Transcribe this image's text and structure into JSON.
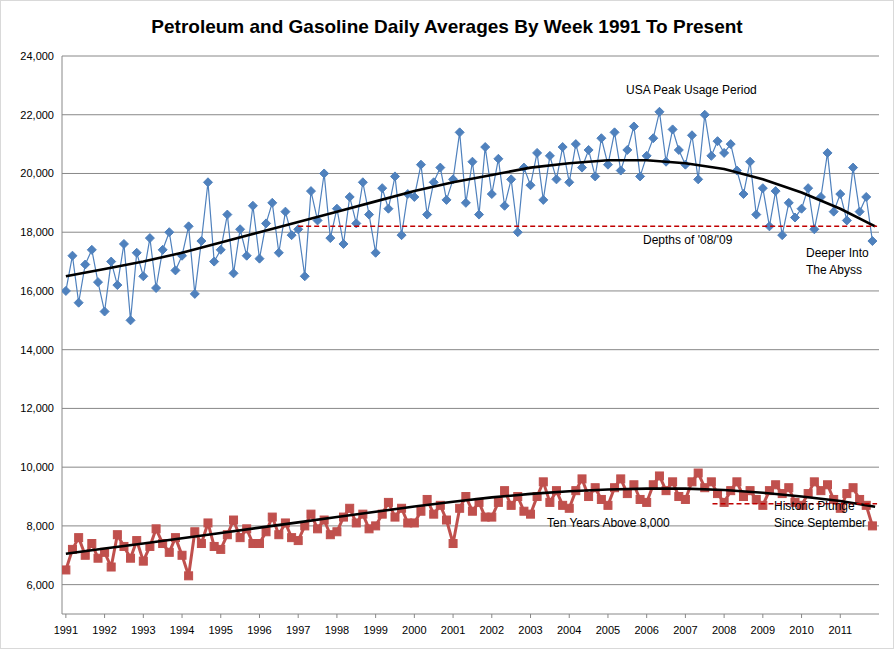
{
  "chart_data": {
    "type": "line",
    "title": "Petroleum and Gasoline Daily Averages By Week 1991 To Present",
    "xlim": [
      1990.9,
      2012
    ],
    "xticks": [
      1991,
      1992,
      1993,
      1994,
      1995,
      1996,
      1997,
      1998,
      1999,
      2000,
      2001,
      2002,
      2003,
      2004,
      2005,
      2006,
      2007,
      2008,
      2009,
      2010,
      2011
    ],
    "ylim": [
      5000,
      24000
    ],
    "yticks": [
      {
        "value": 6000,
        "label": "6,000"
      },
      {
        "value": 8000,
        "label": "8,000"
      },
      {
        "value": 10000,
        "label": "10,000"
      },
      {
        "value": 12000,
        "label": "12,000"
      },
      {
        "value": 14000,
        "label": "14,000"
      },
      {
        "value": 16000,
        "label": "16,000"
      },
      {
        "value": 18000,
        "label": "18,000"
      },
      {
        "value": 20000,
        "label": "20,000"
      },
      {
        "value": 22000,
        "label": "22,000"
      },
      {
        "value": 24000,
        "label": "24,000"
      }
    ],
    "grid": true,
    "series": [
      {
        "type": "line",
        "color": "#4f81bd",
        "marker": "diamond",
        "line_style": "solid",
        "x": [
          1991,
          1991.17,
          1991.33,
          1991.5,
          1991.67,
          1991.83,
          1992,
          1992.17,
          1992.33,
          1992.5,
          1992.67,
          1992.83,
          1993,
          1993.17,
          1993.33,
          1993.5,
          1993.67,
          1993.83,
          1994,
          1994.17,
          1994.33,
          1994.5,
          1994.67,
          1994.83,
          1995,
          1995.17,
          1995.33,
          1995.5,
          1995.67,
          1995.83,
          1996,
          1996.17,
          1996.33,
          1996.5,
          1996.67,
          1996.83,
          1997,
          1997.17,
          1997.33,
          1997.5,
          1997.67,
          1997.83,
          1998,
          1998.17,
          1998.33,
          1998.5,
          1998.67,
          1998.83,
          1999,
          1999.17,
          1999.33,
          1999.5,
          1999.67,
          1999.83,
          2000,
          2000.17,
          2000.33,
          2000.5,
          2000.67,
          2000.83,
          2001,
          2001.17,
          2001.33,
          2001.5,
          2001.67,
          2001.83,
          2002,
          2002.17,
          2002.33,
          2002.5,
          2002.67,
          2002.83,
          2003,
          2003.17,
          2003.33,
          2003.5,
          2003.67,
          2003.83,
          2004,
          2004.17,
          2004.33,
          2004.5,
          2004.67,
          2004.83,
          2005,
          2005.17,
          2005.33,
          2005.5,
          2005.67,
          2005.83,
          2006,
          2006.17,
          2006.33,
          2006.5,
          2006.67,
          2006.83,
          2007,
          2007.17,
          2007.33,
          2007.5,
          2007.67,
          2007.83,
          2008,
          2008.17,
          2008.33,
          2008.5,
          2008.67,
          2008.83,
          2009,
          2009.17,
          2009.33,
          2009.5,
          2009.67,
          2009.83,
          2010,
          2010.17,
          2010.33,
          2010.5,
          2010.67,
          2010.83,
          2011,
          2011.17,
          2011.33,
          2011.5,
          2011.67,
          2011.83
        ],
        "values": [
          16000,
          17200,
          15600,
          16900,
          17400,
          16300,
          15300,
          17000,
          16200,
          17600,
          15000,
          17300,
          16500,
          17800,
          16100,
          17400,
          18000,
          16700,
          17200,
          18200,
          15900,
          17700,
          19700,
          17000,
          17400,
          18600,
          16600,
          18100,
          17200,
          18900,
          17100,
          18300,
          19000,
          17300,
          18700,
          17900,
          18100,
          16500,
          19400,
          18400,
          20000,
          17800,
          18800,
          17600,
          19200,
          18300,
          19700,
          18600,
          17300,
          19500,
          18800,
          19900,
          17900,
          19300,
          19200,
          20300,
          18600,
          19700,
          20200,
          19100,
          19800,
          21400,
          19000,
          20400,
          18600,
          20900,
          19300,
          20500,
          18900,
          19800,
          18000,
          20200,
          19600,
          20700,
          19100,
          20600,
          19800,
          20900,
          19700,
          21000,
          20200,
          20800,
          19900,
          21200,
          20300,
          21400,
          20100,
          20800,
          21600,
          19900,
          20600,
          21200,
          22100,
          20400,
          21500,
          20800,
          20300,
          21300,
          19800,
          22000,
          20600,
          21100,
          20700,
          21000,
          20100,
          19300,
          20400,
          18600,
          19500,
          18200,
          19400,
          17900,
          19000,
          18500,
          18800,
          19500,
          18100,
          19200,
          20700,
          18700,
          19300,
          18400,
          20200,
          18700,
          19200,
          17700
        ]
      },
      {
        "type": "line",
        "color": "#c0504d",
        "marker": "square",
        "line_style": "solid",
        "x": [
          1991,
          1991.17,
          1991.33,
          1991.5,
          1991.67,
          1991.83,
          1992,
          1992.17,
          1992.33,
          1992.5,
          1992.67,
          1992.83,
          1993,
          1993.17,
          1993.33,
          1993.5,
          1993.67,
          1993.83,
          1994,
          1994.17,
          1994.33,
          1994.5,
          1994.67,
          1994.83,
          1995,
          1995.17,
          1995.33,
          1995.5,
          1995.67,
          1995.83,
          1996,
          1996.17,
          1996.33,
          1996.5,
          1996.67,
          1996.83,
          1997,
          1997.17,
          1997.33,
          1997.5,
          1997.67,
          1997.83,
          1998,
          1998.17,
          1998.33,
          1998.5,
          1998.67,
          1998.83,
          1999,
          1999.17,
          1999.33,
          1999.5,
          1999.67,
          1999.83,
          2000,
          2000.17,
          2000.33,
          2000.5,
          2000.67,
          2000.83,
          2001,
          2001.17,
          2001.33,
          2001.5,
          2001.67,
          2001.83,
          2002,
          2002.17,
          2002.33,
          2002.5,
          2002.67,
          2002.83,
          2003,
          2003.17,
          2003.33,
          2003.5,
          2003.67,
          2003.83,
          2004,
          2004.17,
          2004.33,
          2004.5,
          2004.67,
          2004.83,
          2005,
          2005.17,
          2005.33,
          2005.5,
          2005.67,
          2005.83,
          2006,
          2006.17,
          2006.33,
          2006.5,
          2006.67,
          2006.83,
          2007,
          2007.17,
          2007.33,
          2007.5,
          2007.67,
          2007.83,
          2008,
          2008.17,
          2008.33,
          2008.5,
          2008.67,
          2008.83,
          2009,
          2009.17,
          2009.33,
          2009.5,
          2009.67,
          2009.83,
          2010,
          2010.17,
          2010.33,
          2010.5,
          2010.67,
          2010.83,
          2011,
          2011.17,
          2011.33,
          2011.5,
          2011.67,
          2011.83
        ],
        "values": [
          6500,
          7200,
          7600,
          7000,
          7400,
          6900,
          7100,
          6600,
          7700,
          7300,
          6900,
          7500,
          6800,
          7300,
          7900,
          7400,
          7100,
          7600,
          7000,
          6300,
          7800,
          7400,
          8100,
          7300,
          7200,
          7700,
          8200,
          7600,
          7900,
          7400,
          7400,
          7800,
          8300,
          7700,
          8100,
          7600,
          7500,
          8000,
          8400,
          7900,
          8200,
          7700,
          7800,
          8300,
          8600,
          8100,
          8400,
          7900,
          8000,
          8400,
          8800,
          8300,
          8600,
          8100,
          8100,
          8500,
          8900,
          8400,
          8700,
          8200,
          7400,
          8600,
          9000,
          8500,
          8800,
          8300,
          8300,
          8800,
          9200,
          8700,
          9000,
          8500,
          8400,
          9000,
          9500,
          8800,
          9200,
          8700,
          8600,
          9200,
          9600,
          9000,
          9300,
          8900,
          8700,
          9300,
          9600,
          9100,
          9400,
          8900,
          8800,
          9400,
          9700,
          9200,
          9500,
          9000,
          8900,
          9500,
          9800,
          9300,
          9500,
          9100,
          8800,
          9200,
          9500,
          9000,
          9200,
          8900,
          8700,
          9200,
          9400,
          9100,
          9300,
          8800,
          8700,
          9100,
          9500,
          9200,
          9400,
          8900,
          8600,
          9100,
          9300,
          8900,
          8700,
          8000
        ]
      },
      {
        "type": "line",
        "color": "#000000",
        "marker": "none",
        "line_style": "solid",
        "x": [
          1991,
          1992,
          1993,
          1994,
          1995,
          1996,
          1997,
          1998,
          1999,
          2000,
          2001,
          2002,
          2003,
          2004,
          2005,
          2006,
          2007,
          2008,
          2009,
          2010,
          2011,
          2011.9
        ],
        "values": [
          16500,
          16750,
          17000,
          17300,
          17650,
          18000,
          18350,
          18700,
          19050,
          19400,
          19700,
          19950,
          20200,
          20350,
          20450,
          20450,
          20350,
          20150,
          19800,
          19350,
          18800,
          18200
        ]
      },
      {
        "type": "line",
        "color": "#000000",
        "marker": "none",
        "line_style": "solid",
        "x": [
          1991,
          1992,
          1993,
          1994,
          1995,
          1996,
          1997,
          1998,
          1999,
          2000,
          2001,
          2002,
          2003,
          2004,
          2005,
          2006,
          2007,
          2008,
          2009,
          2010,
          2011,
          2011.9
        ],
        "values": [
          7050,
          7230,
          7400,
          7580,
          7760,
          7940,
          8120,
          8300,
          8480,
          8660,
          8820,
          8970,
          9090,
          9180,
          9240,
          9270,
          9270,
          9220,
          9130,
          9000,
          8850,
          8650
        ]
      }
    ],
    "reference_lines": [
      {
        "value": 18200,
        "x": [
          1997,
          2011.95
        ],
        "color": "#c00000",
        "line_style": "dashed"
      },
      {
        "value": 8750,
        "x": [
          2007.7,
          2011.95
        ],
        "color": "#c00000",
        "line_style": "dashed"
      }
    ],
    "annotations": [
      {
        "lines": [
          "USA Peak Usage Period"
        ]
      },
      {
        "lines": [
          "Depths of '08/'09"
        ]
      },
      {
        "lines": [
          "Deeper Into",
          "The Abyss"
        ]
      },
      {
        "lines": [
          "Ten Years Above 8,000"
        ]
      },
      {
        "lines": [
          "Historic Plunge",
          "Since September"
        ]
      }
    ]
  }
}
